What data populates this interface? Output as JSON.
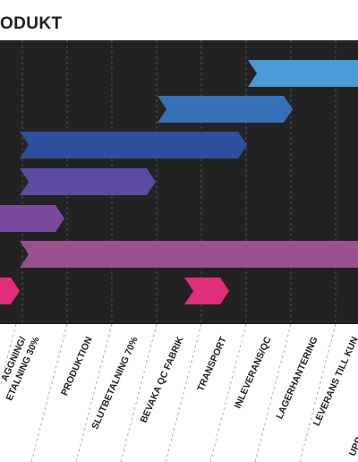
{
  "header": {
    "title": "ODUKT"
  },
  "columns": [
    {
      "label": "AGGNING/"
    },
    {
      "label": "ETALNING 30%"
    },
    {
      "label": "PRODUKTION"
    },
    {
      "label": "SLUTBETALNING 70%"
    },
    {
      "label": "BEVAKA QC FABRIK"
    },
    {
      "label": "TRANSPORT"
    },
    {
      "label": "INLEVERANS/QC"
    },
    {
      "label": "LAGERHANTERING"
    },
    {
      "label": "LEVERANS TILL KUN"
    },
    {
      "label": "UPP"
    }
  ],
  "bars": [
    {
      "name": "bar-inleverans",
      "color": "#4a9ad4"
    },
    {
      "name": "bar-transport",
      "color": "#3671b6"
    },
    {
      "name": "bar-produktion",
      "color": "#2e4f9e"
    },
    {
      "name": "bar-slutbetalning",
      "color": "#5b4aa0"
    },
    {
      "name": "bar-betalning",
      "color": "#7a4a9c"
    },
    {
      "name": "bar-overall",
      "color": "#98508f"
    },
    {
      "name": "bar-milestone-a",
      "color": "#e02e7a"
    },
    {
      "name": "bar-milestone-b",
      "color": "#e02e7a"
    }
  ]
}
